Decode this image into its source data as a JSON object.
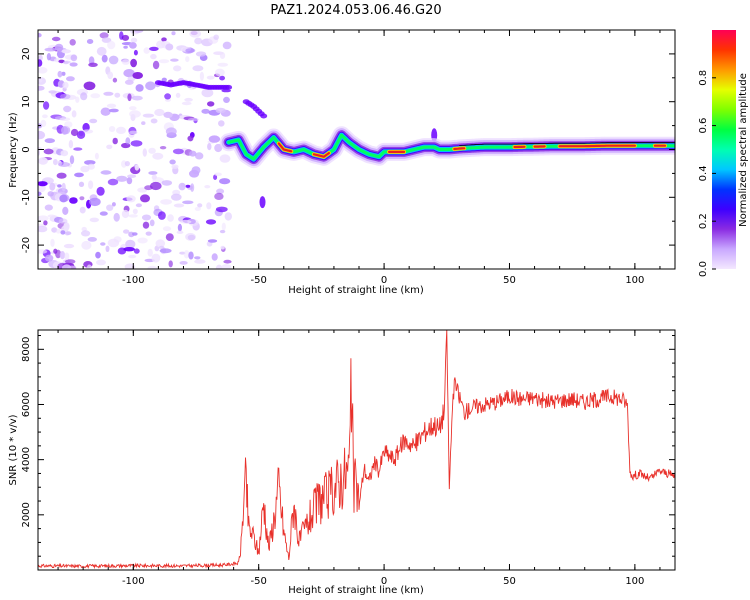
{
  "title": "PAZ1.2024.053.06.46.G20",
  "colors": {
    "snr_line": "#e8302a",
    "ridge": "#e82020",
    "speckle": "#8a2be2",
    "colormap": [
      "#f4e8ff",
      "#c9a8ff",
      "#8a2be2",
      "#3d00ff",
      "#0033ff",
      "#00c8ff",
      "#00ffb0",
      "#00ff40",
      "#80ff00",
      "#e6ff00",
      "#ff9900",
      "#ff3300",
      "#ff0055"
    ]
  },
  "chart_data": [
    {
      "type": "heatmap",
      "title": "PAZ1.2024.053.06.46.G20",
      "xlabel": "Height of straight line (km)",
      "ylabel": "Frequency (Hz)",
      "xlim": [
        -138,
        116
      ],
      "ylim": [
        -25,
        25
      ],
      "x_ticks": [
        -100,
        -50,
        0,
        50,
        100
      ],
      "y_ticks": [
        -20,
        -10,
        0,
        10,
        20
      ],
      "colorbar": {
        "label": "Normalized spectral amplitude",
        "range": [
          0,
          1
        ],
        "ticks": [
          "0.0",
          "0.2",
          "0.4",
          "0.6",
          "0.8"
        ]
      },
      "noise_region_x": [
        -138,
        -62
      ],
      "ridge": {
        "x": [
          -62,
          -58,
          -55,
          -52,
          -48,
          -44,
          -40,
          -36,
          -32,
          -28,
          -24,
          -20,
          -17,
          -14,
          -10,
          -6,
          -2,
          0,
          4,
          8,
          12,
          16,
          18,
          20,
          22,
          26,
          30,
          40,
          50,
          60,
          70,
          80,
          90,
          100,
          110,
          116
        ],
        "freq": [
          1.5,
          2,
          -1,
          -2,
          0.5,
          2.5,
          0,
          -0.5,
          0,
          -1,
          -1.5,
          0,
          3,
          1.5,
          0,
          -1,
          -1.5,
          -0.5,
          -0.5,
          -0.5,
          0,
          0.5,
          0.5,
          0.5,
          0,
          0,
          0.2,
          0.5,
          0.5,
          0.6,
          0.7,
          0.7,
          0.8,
          0.8,
          0.8,
          0.8
        ]
      },
      "secondary_tracks": [
        {
          "x": [
            -90,
            -85,
            -80,
            -75,
            -70,
            -65,
            -62
          ],
          "freq": [
            14,
            13.5,
            14,
            13.5,
            13,
            13,
            13
          ]
        },
        {
          "x": [
            -55,
            -52,
            -50,
            -48
          ],
          "freq": [
            10,
            9,
            8,
            7
          ]
        }
      ]
    },
    {
      "type": "line",
      "xlabel": "Height of straight line (km)",
      "ylabel": "SNR (10 * v/v)",
      "xlim": [
        -138,
        116
      ],
      "ylim": [
        0,
        8700
      ],
      "x_ticks": [
        -100,
        -50,
        0,
        50,
        100
      ],
      "y_ticks": [
        2000,
        4000,
        6000,
        8000
      ],
      "series": [
        {
          "x": [
            -138,
            -120,
            -100,
            -80,
            -64,
            -58,
            -57,
            -56,
            -55,
            -54,
            -52,
            -50,
            -48,
            -46,
            -44,
            -42,
            -40,
            -38,
            -36,
            -34,
            -30,
            -26,
            -22,
            -18,
            -16,
            -14,
            -13,
            -12,
            -11,
            -10,
            -8,
            -6,
            -4,
            -2,
            0,
            4,
            8,
            12,
            16,
            20,
            22,
            24,
            25,
            26,
            27,
            28,
            30,
            32,
            35,
            40,
            45,
            50,
            55,
            60,
            65,
            70,
            75,
            80,
            85,
            90,
            95,
            97,
            98,
            99,
            102,
            106,
            110,
            116
          ],
          "values": [
            150,
            140,
            160,
            150,
            180,
            250,
            900,
            2500,
            3200,
            1500,
            1200,
            600,
            2500,
            800,
            1800,
            3000,
            1400,
            400,
            2500,
            1000,
            1800,
            2500,
            2700,
            3200,
            3400,
            3600,
            6400,
            2800,
            3300,
            2300,
            3700,
            3200,
            3900,
            3600,
            4300,
            4000,
            4700,
            4500,
            5000,
            5300,
            5100,
            5800,
            8700,
            2900,
            5400,
            6800,
            6300,
            5700,
            5900,
            6000,
            6100,
            6300,
            6200,
            6250,
            6100,
            6150,
            6200,
            6100,
            6200,
            6300,
            6200,
            6000,
            3600,
            3400,
            3500,
            3300,
            3600,
            3400
          ]
        }
      ]
    }
  ]
}
